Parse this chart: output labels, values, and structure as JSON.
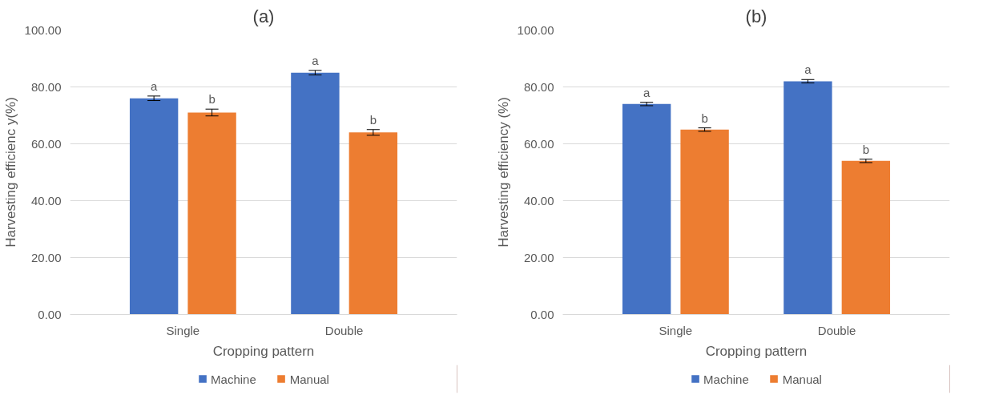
{
  "chart_data": [
    {
      "type": "bar",
      "title": "(a)",
      "xlabel": "Cropping pattern",
      "ylabel": "Harvesting efficienc y(%)",
      "categories": [
        "Single",
        "Double"
      ],
      "series": [
        {
          "name": "Machine",
          "color": "#4472c4",
          "values": [
            76,
            85
          ],
          "errors": [
            0.8,
            0.8
          ]
        },
        {
          "name": "Manual",
          "color": "#ed7d31",
          "values": [
            71,
            64
          ],
          "errors": [
            1.2,
            1.0
          ]
        }
      ],
      "ylim": [
        0,
        100
      ],
      "yticks": [
        {
          "value": 0,
          "label": "0.00"
        },
        {
          "value": 20,
          "label": "20.00"
        },
        {
          "value": 40,
          "label": "40.00"
        },
        {
          "value": 60,
          "label": "60.00"
        },
        {
          "value": 80,
          "label": "80.00"
        },
        {
          "value": 100,
          "label": "100.00"
        }
      ],
      "grid": "y",
      "legend": "bottom",
      "annotations": [
        "a",
        "b",
        "a",
        "b"
      ]
    },
    {
      "type": "bar",
      "title": "(b)",
      "xlabel": "Cropping pattern",
      "ylabel": "Harvesting efficiency (%)",
      "categories": [
        "Single",
        "Double"
      ],
      "series": [
        {
          "name": "Machine",
          "color": "#4472c4",
          "values": [
            74,
            82
          ],
          "errors": [
            0.6,
            0.6
          ]
        },
        {
          "name": "Manual",
          "color": "#ed7d31",
          "values": [
            65,
            54
          ],
          "errors": [
            0.6,
            0.6
          ]
        }
      ],
      "ylim": [
        0,
        100
      ],
      "yticks": [
        {
          "value": 0,
          "label": "0.00"
        },
        {
          "value": 20,
          "label": "20.00"
        },
        {
          "value": 40,
          "label": "40.00"
        },
        {
          "value": 60,
          "label": "60.00"
        },
        {
          "value": 80,
          "label": "80.00"
        },
        {
          "value": 100,
          "label": "100.00"
        }
      ],
      "grid": "y",
      "legend": "bottom",
      "annotations": [
        "a",
        "b",
        "a",
        "b"
      ]
    }
  ]
}
